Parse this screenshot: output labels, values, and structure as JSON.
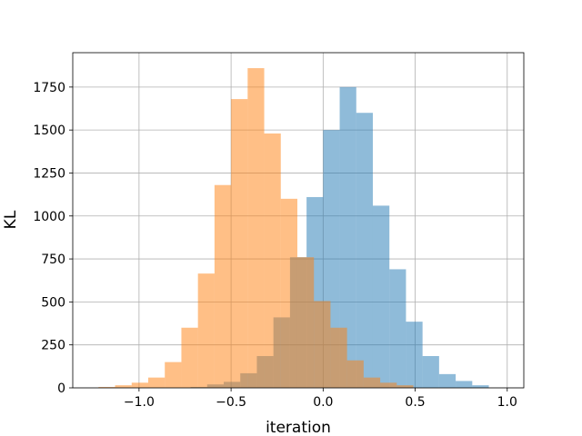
{
  "chart_data": {
    "type": "histogram",
    "xlabel": "iteration",
    "ylabel": "KL",
    "xlim": [
      -1.36,
      1.09
    ],
    "ylim": [
      0,
      1950
    ],
    "xticks": [
      -1.0,
      -0.5,
      0.0,
      0.5,
      1.0
    ],
    "xtick_labels": [
      "−1.0",
      "−0.5",
      "0.0",
      "0.5",
      "1.0"
    ],
    "yticks": [
      0,
      250,
      500,
      750,
      1000,
      1250,
      1500,
      1750
    ],
    "ytick_labels": [
      "0",
      "250",
      "500",
      "750",
      "1000",
      "1250",
      "1500",
      "1750"
    ],
    "grid": true,
    "legend": "none",
    "series": [
      {
        "color": "#1f77b4",
        "alpha": 0.5,
        "bins": [
          -0.72,
          -0.63,
          -0.54,
          -0.45,
          -0.36,
          -0.27,
          -0.18,
          -0.09,
          0.0,
          0.09,
          0.18,
          0.27,
          0.36,
          0.45,
          0.54,
          0.63,
          0.72,
          0.81,
          0.9
        ],
        "counts": [
          5,
          20,
          35,
          85,
          185,
          410,
          760,
          1110,
          1500,
          1750,
          1600,
          1060,
          690,
          385,
          185,
          80,
          40,
          15
        ]
      },
      {
        "color": "#ff7f0e",
        "alpha": 0.5,
        "bins": [
          -1.22,
          -1.13,
          -1.04,
          -0.95,
          -0.86,
          -0.77,
          -0.68,
          -0.59,
          -0.5,
          -0.41,
          -0.32,
          -0.23,
          -0.14,
          -0.05,
          0.04,
          0.13,
          0.22,
          0.31,
          0.4,
          0.49
        ],
        "counts": [
          5,
          15,
          30,
          60,
          150,
          350,
          665,
          1180,
          1680,
          1860,
          1480,
          1100,
          760,
          505,
          350,
          160,
          60,
          30,
          15
        ]
      }
    ]
  }
}
